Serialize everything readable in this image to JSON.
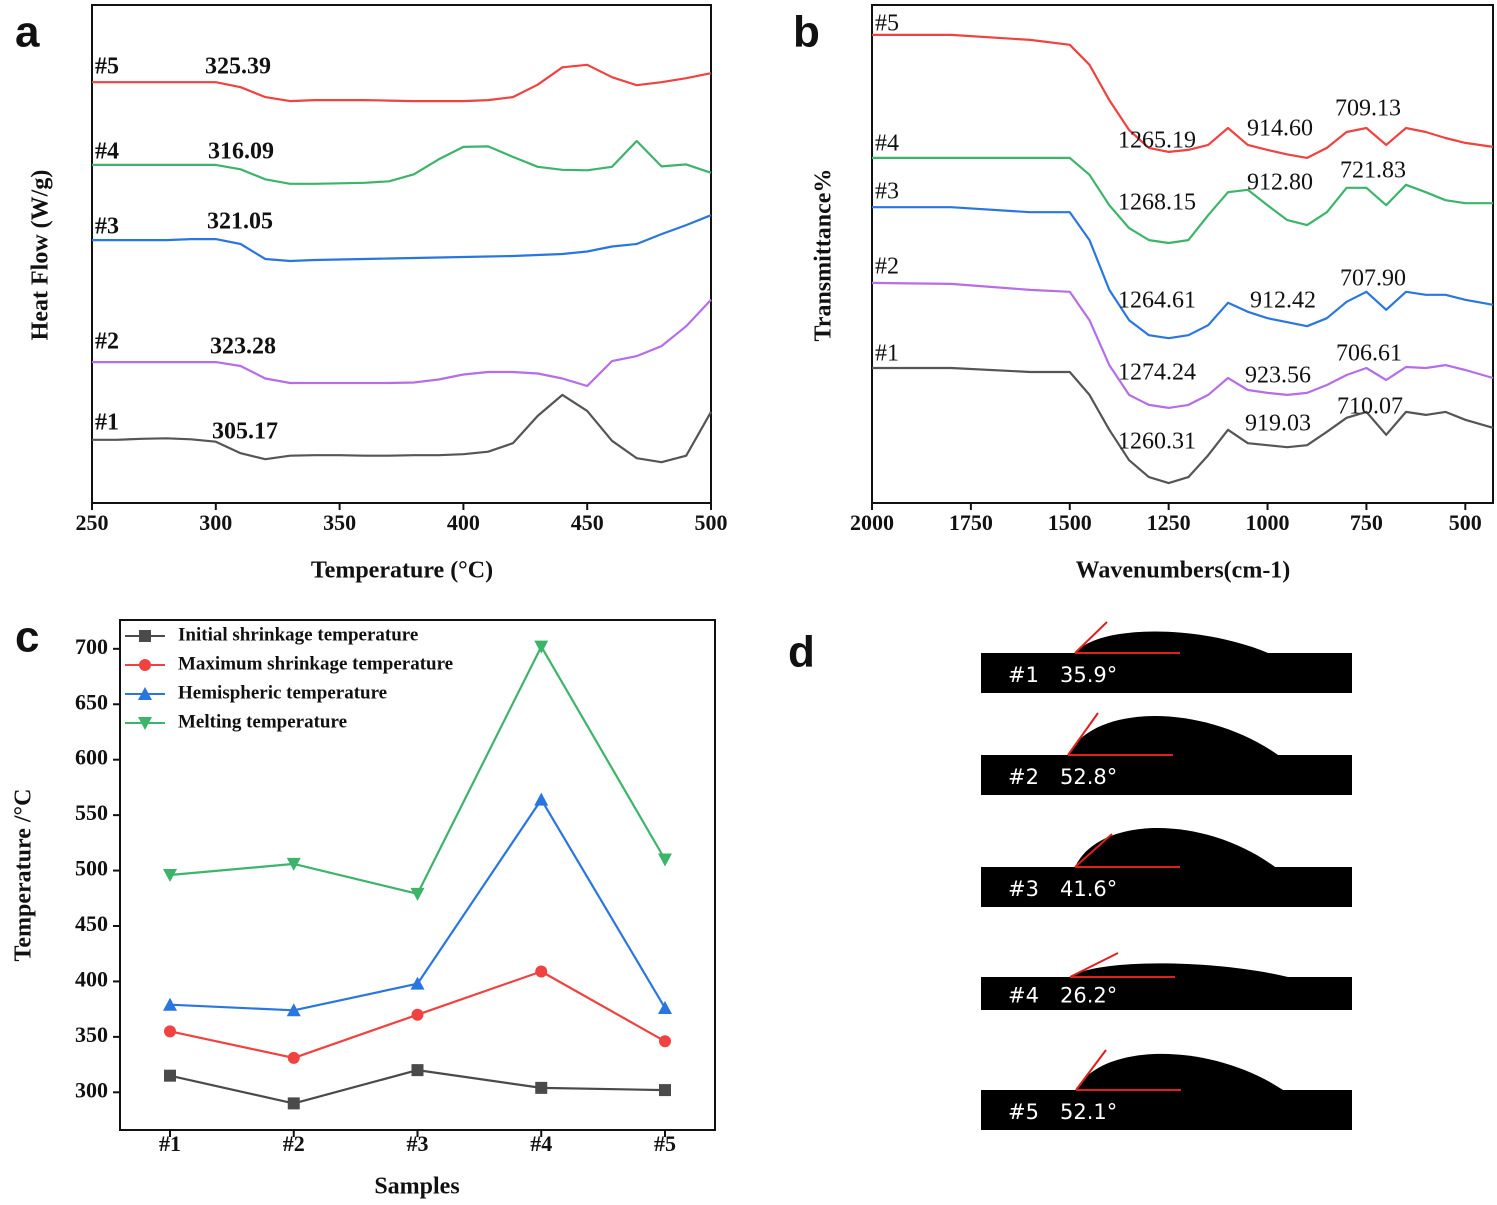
{
  "chart_data": [
    {
      "type": "line",
      "panel_label": "a",
      "x_label": "Temperature (°C)",
      "y_label": "Heat Flow (W/g)",
      "x": [
        250,
        260,
        270,
        280,
        290,
        300,
        310,
        320,
        330,
        340,
        350,
        360,
        370,
        380,
        390,
        400,
        410,
        420,
        430,
        440,
        450,
        460,
        470,
        480,
        490,
        500
      ],
      "xlim": [
        250,
        500
      ],
      "xticks": [
        250,
        300,
        350,
        400,
        450,
        500
      ],
      "ylim": [
        0,
        100
      ],
      "series": [
        {
          "name": "#5",
          "color": "#f0423f",
          "annotations": [
            "325.39"
          ],
          "values": [
            84.5,
            84.5,
            84.5,
            84.5,
            84.5,
            84.5,
            83.5,
            81.5,
            80.7,
            80.9,
            80.9,
            80.9,
            80.8,
            80.7,
            80.7,
            80.7,
            80.9,
            81.5,
            84,
            87.5,
            88,
            85.5,
            83.9,
            84.5,
            85.3,
            86.3
          ]
        },
        {
          "name": "#4",
          "color": "#3cb46a",
          "annotations": [
            "316.09"
          ],
          "values": [
            67.9,
            67.9,
            67.9,
            67.9,
            67.9,
            67.9,
            67,
            65,
            64.1,
            64.1,
            64.2,
            64.3,
            64.6,
            66,
            69,
            71.5,
            71.6,
            69.5,
            67.5,
            66.9,
            66.8,
            67.5,
            72.7,
            67.6,
            68,
            66.3
          ]
        },
        {
          "name": "#3",
          "color": "#2a76e0",
          "annotations": [
            "321.05"
          ],
          "values": [
            52.8,
            52.8,
            52.8,
            52.8,
            53,
            53,
            52,
            49,
            48.6,
            48.8,
            48.9,
            49,
            49.1,
            49.2,
            49.3,
            49.4,
            49.5,
            49.6,
            49.8,
            50,
            50.5,
            51.5,
            52,
            54,
            55.8,
            57.8
          ]
        },
        {
          "name": "#2",
          "color": "#b66de8",
          "annotations": [
            "323.28"
          ],
          "values": [
            28.3,
            28.3,
            28.3,
            28.3,
            28.3,
            28.3,
            27.5,
            25,
            24.1,
            24.1,
            24.1,
            24.1,
            24.1,
            24.2,
            24.8,
            25.8,
            26.3,
            26.3,
            26,
            25,
            23.5,
            28.5,
            29.5,
            31.5,
            35.5,
            40.8
          ]
        },
        {
          "name": "#1",
          "color": "#555555",
          "annotations": [
            "305.17"
          ],
          "values": [
            12.7,
            12.7,
            12.9,
            13,
            12.8,
            12.3,
            10,
            8.8,
            9.5,
            9.6,
            9.6,
            9.5,
            9.5,
            9.6,
            9.6,
            9.8,
            10.3,
            12,
            17.5,
            21.7,
            18.5,
            12.5,
            9,
            8.2,
            9.5,
            18.3
          ]
        }
      ]
    },
    {
      "type": "line",
      "panel_label": "b",
      "x_label": "Wavenumbers(cm-1)",
      "y_label": "Transmittance%",
      "x": [
        2000,
        1800,
        1600,
        1500,
        1450,
        1400,
        1350,
        1300,
        1250,
        1200,
        1150,
        1100,
        1050,
        1000,
        950,
        900,
        850,
        800,
        750,
        700,
        650,
        600,
        550,
        500,
        430
      ],
      "xlim": [
        2000,
        430
      ],
      "xticks": [
        2000,
        1750,
        1500,
        1250,
        1000,
        750,
        500
      ],
      "ylim": [
        0,
        100
      ],
      "series": [
        {
          "name": "#5",
          "color": "#f0423f",
          "annotations": [
            "1265.19",
            "914.60",
            "709.13"
          ],
          "values": [
            94,
            94,
            93,
            92,
            88,
            80.9,
            74.9,
            71.3,
            70.5,
            70.9,
            71.9,
            75.3,
            71.9,
            70.9,
            70,
            69.3,
            71.3,
            74.5,
            75.3,
            71.9,
            75.3,
            74.5,
            73.3,
            72.3,
            71.5
          ]
        },
        {
          "name": "#4",
          "color": "#3cb46a",
          "annotations": [
            "1268.15",
            "912.80",
            "721.83"
          ],
          "values": [
            69.3,
            69.3,
            69.3,
            69.3,
            65.9,
            59.8,
            55.2,
            52.8,
            52.2,
            52.8,
            57.8,
            62.4,
            62.9,
            59.8,
            56.8,
            55.8,
            58.4,
            63.3,
            63.3,
            59.8,
            63.9,
            62.4,
            60.8,
            60.2,
            60.2
          ]
        },
        {
          "name": "#3",
          "color": "#2a76e0",
          "annotations": [
            "1264.61",
            "912.42",
            "707.90"
          ],
          "values": [
            59.4,
            59.4,
            58.4,
            58.4,
            52.8,
            42.8,
            36.7,
            33.7,
            33.1,
            33.7,
            35.7,
            40.2,
            38.4,
            37.1,
            36.3,
            35.5,
            37.1,
            40.4,
            42.4,
            38.8,
            42.4,
            41.8,
            41.8,
            40.8,
            39.8
          ]
        },
        {
          "name": "#2",
          "color": "#b66de8",
          "annotations": [
            "1274.24",
            "923.56",
            "706.61"
          ],
          "values": [
            44.2,
            44,
            42.8,
            42.4,
            36.7,
            27.7,
            21.7,
            19.7,
            19.1,
            19.7,
            21.7,
            25.1,
            22.7,
            22.1,
            21.7,
            22.1,
            23.7,
            25.7,
            27.1,
            24.7,
            27.3,
            27.1,
            27.7,
            26.7,
            25.1
          ]
        },
        {
          "name": "#1",
          "color": "#555555",
          "annotations": [
            "1260.31",
            "919.03",
            "710.07"
          ],
          "values": [
            27.1,
            27.1,
            26.3,
            26.3,
            21.7,
            14.7,
            8.6,
            5.2,
            4.0,
            5.2,
            9.6,
            14.7,
            12.0,
            11.6,
            11.2,
            11.6,
            14.3,
            17.1,
            18.3,
            13.7,
            18.3,
            17.7,
            18.3,
            16.7,
            15.1
          ]
        }
      ]
    },
    {
      "type": "line",
      "panel_label": "c",
      "x_label": "Samples",
      "y_label": "Temperature /°C",
      "categories": [
        "#1",
        "#2",
        "#3",
        "#4",
        "#5"
      ],
      "ylim": [
        266,
        726
      ],
      "yticks": [
        300,
        350,
        400,
        450,
        500,
        550,
        600,
        650,
        700
      ],
      "legend": "upper left",
      "series": [
        {
          "name": "Initial shrinkage temperature",
          "color": "#4a4a4a",
          "marker": "square",
          "values": [
            315,
            290,
            320,
            304,
            302
          ]
        },
        {
          "name": "Maximum shrinkage temperature",
          "color": "#f0423f",
          "marker": "circle",
          "values": [
            355,
            331,
            370,
            409,
            346
          ]
        },
        {
          "name": "Hemispheric temperature",
          "color": "#2a76e0",
          "marker": "triangle-up",
          "values": [
            379,
            374,
            398,
            564,
            376
          ]
        },
        {
          "name": "Melting temperature",
          "color": "#3cb46a",
          "marker": "triangle-down",
          "values": [
            496,
            506,
            479,
            702,
            510
          ]
        }
      ]
    }
  ],
  "contact_angle": {
    "panel_label": "d",
    "images": [
      {
        "sample": "#1",
        "angle": "35.9°"
      },
      {
        "sample": "#2",
        "angle": "52.8°"
      },
      {
        "sample": "#3",
        "angle": "41.6°"
      },
      {
        "sample": "#4",
        "angle": "26.2°"
      },
      {
        "sample": "#5",
        "angle": "52.1°"
      }
    ]
  }
}
